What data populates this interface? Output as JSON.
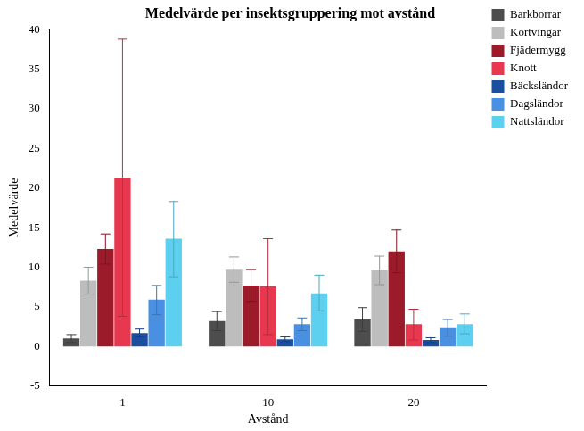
{
  "chart_data": {
    "type": "bar",
    "title": "Medelvärde per insektsgruppering mot avstånd",
    "x_label": "Avstånd",
    "y_label": "Medelvärde",
    "categories": [
      "1",
      "10",
      "20"
    ],
    "series": [
      {
        "name": "Barkborrar",
        "color": "#4d4d4d",
        "values": [
          1.0,
          3.2,
          3.4
        ],
        "error_bars": [
          [
            0.5,
            1.5
          ],
          [
            2.0,
            4.4
          ],
          [
            1.9,
            4.9
          ]
        ]
      },
      {
        "name": "Kortvingar",
        "color": "#bdbdbd",
        "values": [
          8.3,
          9.7,
          9.6
        ],
        "error_bars": [
          [
            6.6,
            10.0
          ],
          [
            8.1,
            11.3
          ],
          [
            7.8,
            11.4
          ]
        ]
      },
      {
        "name": "Fjädermygg",
        "color": "#9b1b2a",
        "values": [
          12.3,
          7.7,
          12.0
        ],
        "error_bars": [
          [
            10.4,
            14.2
          ],
          [
            5.7,
            9.7
          ],
          [
            9.3,
            14.7
          ]
        ]
      },
      {
        "name": "Knott",
        "color": "#e8384f",
        "values": [
          21.3,
          7.6,
          2.8
        ],
        "error_bars": [
          [
            3.8,
            38.8
          ],
          [
            1.5,
            13.6
          ],
          [
            0.8,
            4.7
          ]
        ]
      },
      {
        "name": "Bäcksländor",
        "color": "#1a4fa0",
        "values": [
          1.7,
          0.9,
          0.8
        ],
        "error_bars": [
          [
            1.2,
            2.2
          ],
          [
            0.6,
            1.2
          ],
          [
            0.5,
            1.1
          ]
        ]
      },
      {
        "name": "Dagsländor",
        "color": "#4a90e2",
        "values": [
          5.9,
          2.8,
          2.3
        ],
        "error_bars": [
          [
            4.0,
            7.7
          ],
          [
            2.0,
            3.6
          ],
          [
            1.3,
            3.4
          ]
        ]
      },
      {
        "name": "Nattsländor",
        "color": "#5dd0f0",
        "values": [
          13.6,
          6.7,
          2.8
        ],
        "error_bars": [
          [
            8.8,
            18.3
          ],
          [
            4.5,
            9.0
          ],
          [
            1.6,
            4.1
          ]
        ]
      }
    ],
    "ylim": [
      -5,
      40
    ],
    "yticks": [
      -5,
      0,
      5,
      10,
      15,
      20,
      25,
      30,
      35,
      40
    ],
    "grid": false,
    "legend": "right"
  }
}
